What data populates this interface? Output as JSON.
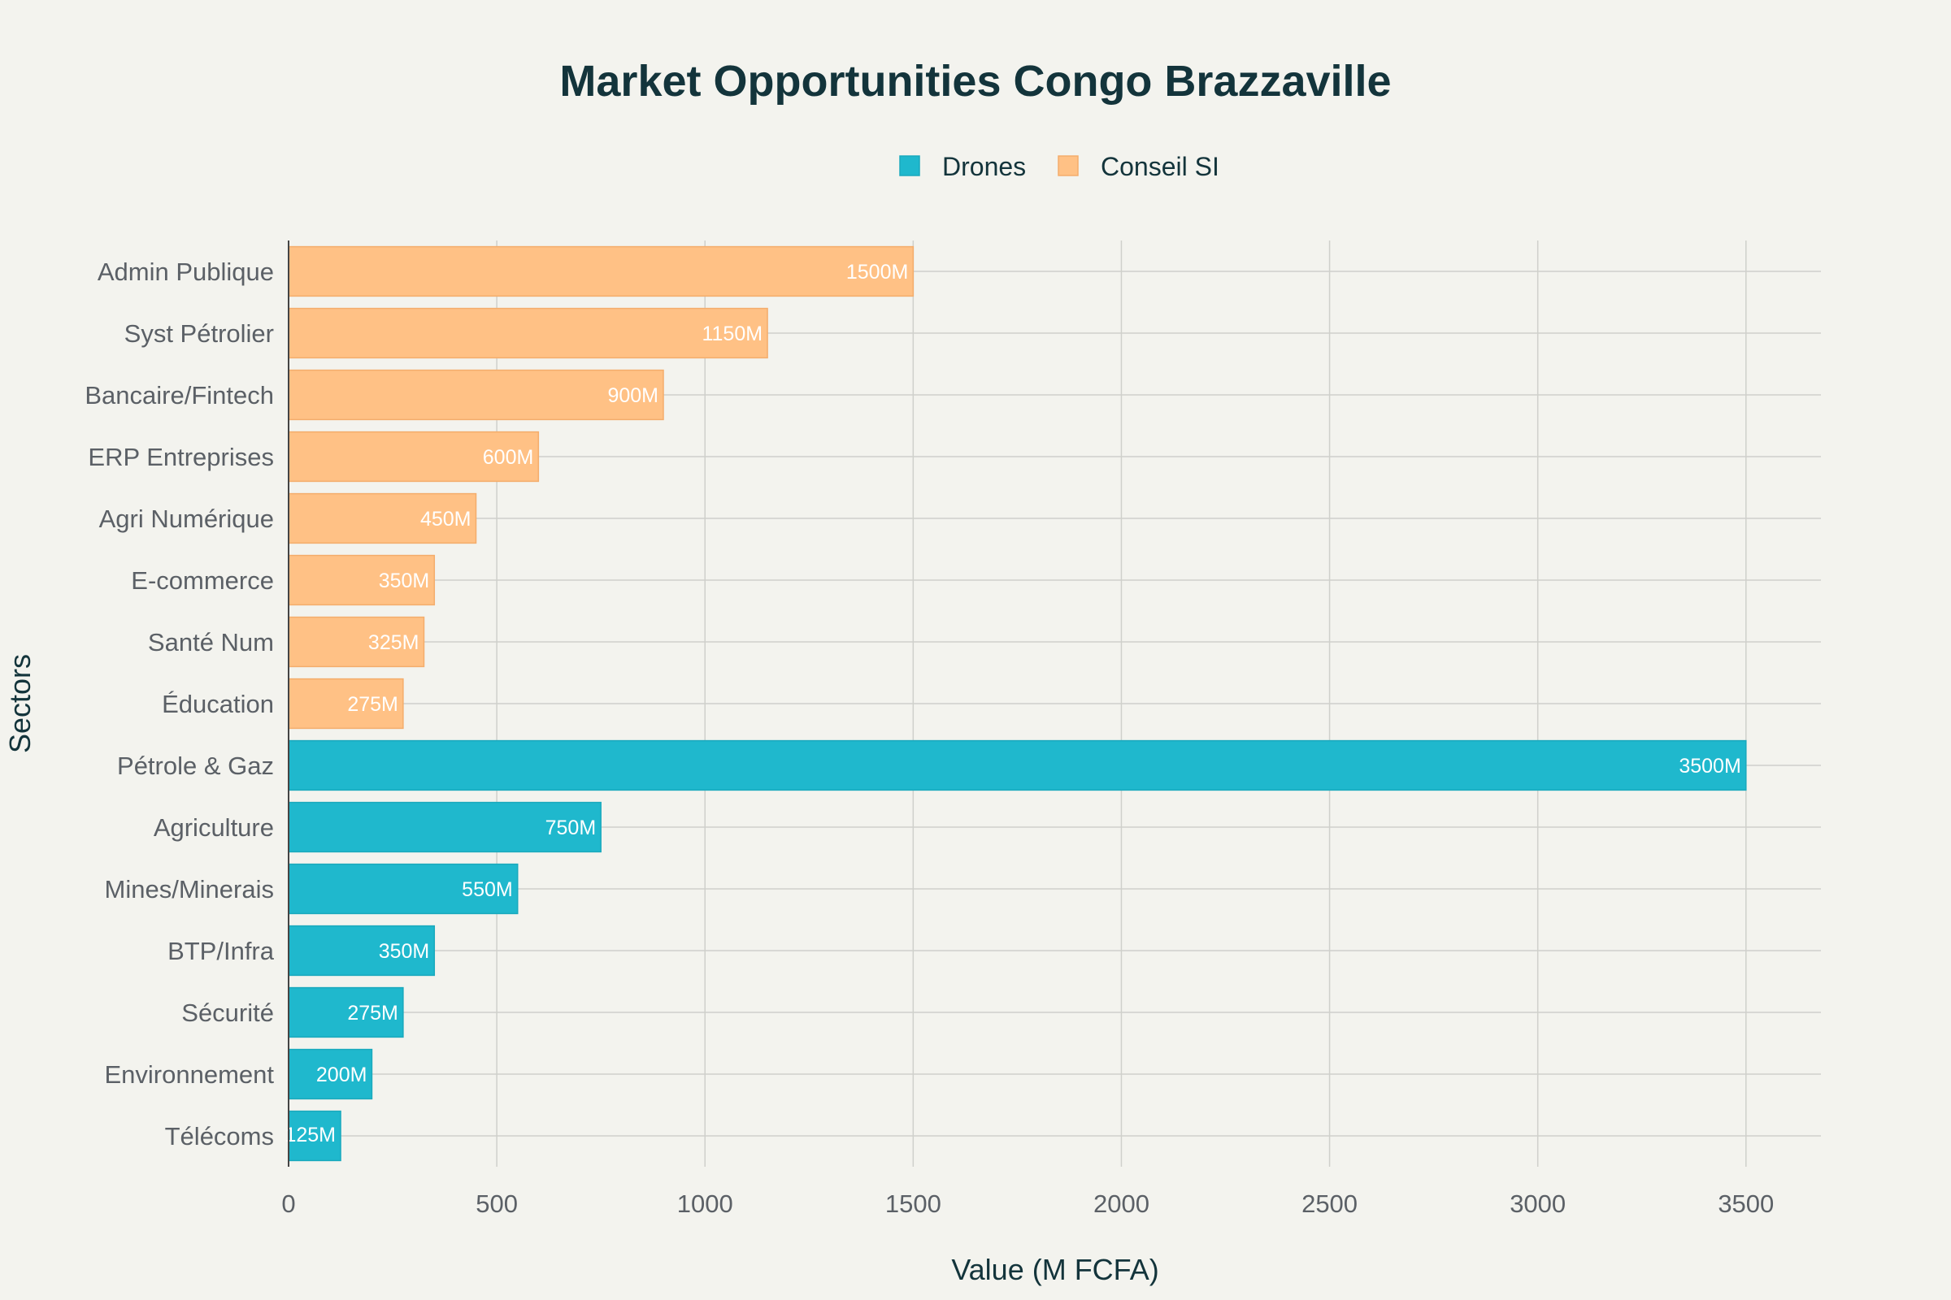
{
  "chart_data": {
    "type": "bar",
    "orientation": "horizontal",
    "title": "Market Opportunities Congo Brazzaville",
    "xlabel": "Value (M FCFA)",
    "ylabel": "Sectors",
    "xlim": [
      0,
      3680
    ],
    "x_ticks": [
      0,
      500,
      1000,
      1500,
      2000,
      2500,
      3000,
      3500
    ],
    "grid": true,
    "legend_position": "top-center",
    "series": [
      {
        "name": "Drones",
        "color": "#1fb8cd",
        "categories": [
          "Télécoms",
          "Environnement",
          "Sécurité",
          "BTP/Infra",
          "Mines/Minerais",
          "Agriculture",
          "Pétrole & Gaz"
        ],
        "values": [
          125,
          200,
          275,
          350,
          550,
          750,
          3500
        ],
        "labels": [
          "125M",
          "200M",
          "275M",
          "350M",
          "550M",
          "750M",
          "3500M"
        ]
      },
      {
        "name": "Conseil SI",
        "color": "#ffc185",
        "categories": [
          "Éducation",
          "Santé Num",
          "E-commerce",
          "Agri Numérique",
          "ERP Entreprises",
          "Bancaire/Fintech",
          "Syst Pétrolier",
          "Admin Publique"
        ],
        "values": [
          275,
          325,
          350,
          450,
          600,
          900,
          1150,
          1500
        ],
        "labels": [
          "275M",
          "325M",
          "350M",
          "450M",
          "600M",
          "900M",
          "1150M",
          "1500M"
        ]
      }
    ]
  }
}
